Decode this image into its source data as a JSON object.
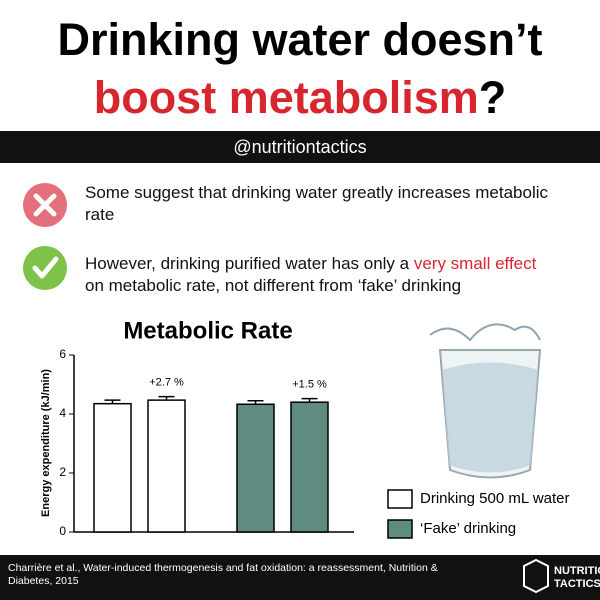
{
  "header": {
    "title_line1": "Drinking water doesn’t",
    "title_line2": "boost metabolism",
    "title_mark": "?",
    "handle": "@nutritiontactics"
  },
  "points": [
    {
      "parts": [
        "Some suggest that drinking water greatly increases metabolic rate"
      ]
    },
    {
      "parts": [
        "However, drinking purified water has only a ",
        "very small effect",
        " on metabolic rate, not different from ‘fake’ drinking"
      ]
    }
  ],
  "chart_data": {
    "type": "bar",
    "title": "Metabolic Rate",
    "y_label": "Energy expenditure (kJ/min)",
    "categories": [
      null,
      null
    ],
    "series": [
      {
        "name": "Drinking 500 mL water",
        "color": "#ffffff",
        "values": [
          4.35,
          4.47
        ],
        "errors": [
          0.12,
          0.12
        ]
      },
      {
        "name": "‘Fake’ drinking",
        "color": "#5f8b80",
        "values": [
          4.33,
          4.4
        ],
        "errors": [
          0.12,
          0.12
        ]
      }
    ],
    "annotations": [
      "+2.7 %",
      "+1.5 %"
    ],
    "ylim": [
      0,
      6
    ],
    "yticks": [
      0,
      2,
      4,
      6
    ]
  },
  "footer": {
    "citation": "Charrière et al., Water-induced thermogenesis and fat oxidation: a reassessment, Nutrition & Diabetes, 2015",
    "brand_line1": "NUTRITION",
    "brand_line2": "TACTICS"
  }
}
